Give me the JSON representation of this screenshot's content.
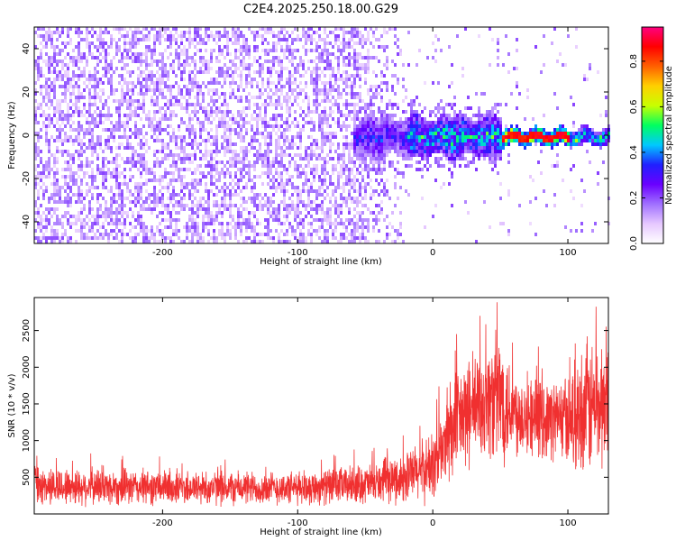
{
  "figure_title": "C2E4.2025.250.18.00.G29",
  "chart_data": [
    {
      "type": "heatmap",
      "title": "C2E4.2025.250.18.00.G29",
      "xlabel": "Height of straight line (km)",
      "ylabel": "Frequency (Hz)",
      "xlim": [
        -295,
        130
      ],
      "ylim": [
        -50,
        50
      ],
      "xticks": [
        -200,
        -100,
        0,
        100
      ],
      "yticks": [
        -40,
        -20,
        0,
        20,
        40
      ],
      "xtick_labels": [
        "-200",
        "-100",
        "0",
        "100"
      ],
      "ytick_labels": [
        "-40",
        "-20",
        "0",
        "20",
        "40"
      ],
      "colorbar": {
        "label": "Normalized spectral amplitude",
        "range": [
          0,
          0.95
        ],
        "ticks": [
          0.0,
          0.2,
          0.4,
          0.6,
          0.8
        ],
        "tick_labels": [
          "0.0",
          "0.2",
          "0.4",
          "0.6",
          "0.8"
        ],
        "colors": [
          "#ffffff",
          "#e6c8ff",
          "#a070ff",
          "#6a00ff",
          "#2020ff",
          "#00c8ff",
          "#00ff60",
          "#c8ff00",
          "#ffd000",
          "#ff6000",
          "#ff0000",
          "#ff0080"
        ]
      },
      "features": {
        "noise_region_x": [
          -295,
          -20
        ],
        "signal_center_freq": 0,
        "signal_start_x": -60,
        "peak_region_x": [
          50,
          100
        ],
        "peak_amplitude": 0.9
      }
    },
    {
      "type": "line",
      "xlabel": "Height of straight line (km)",
      "ylabel": "SNR (10 * v/v)",
      "xlim": [
        -295,
        130
      ],
      "ylim": [
        0,
        2950
      ],
      "xticks": [
        -200,
        -100,
        0,
        100
      ],
      "yticks": [
        500,
        1000,
        1500,
        2000,
        2500
      ],
      "xtick_labels": [
        "-200",
        "-100",
        "0",
        "100"
      ],
      "ytick_labels": [
        "500",
        "1000",
        "1500",
        "2000",
        "2500"
      ],
      "color": "#f03030",
      "envelope": {
        "x": [
          -295,
          -200,
          -100,
          -40,
          -20,
          0,
          20,
          40,
          50,
          60,
          80,
          100,
          115,
          130
        ],
        "mean": [
          380,
          360,
          350,
          420,
          500,
          650,
          1300,
          1550,
          1600,
          1400,
          1300,
          1300,
          1450,
          1500
        ],
        "spread": [
          300,
          280,
          260,
          320,
          400,
          550,
          850,
          900,
          1100,
          700,
          600,
          700,
          1100,
          1000
        ]
      }
    }
  ]
}
